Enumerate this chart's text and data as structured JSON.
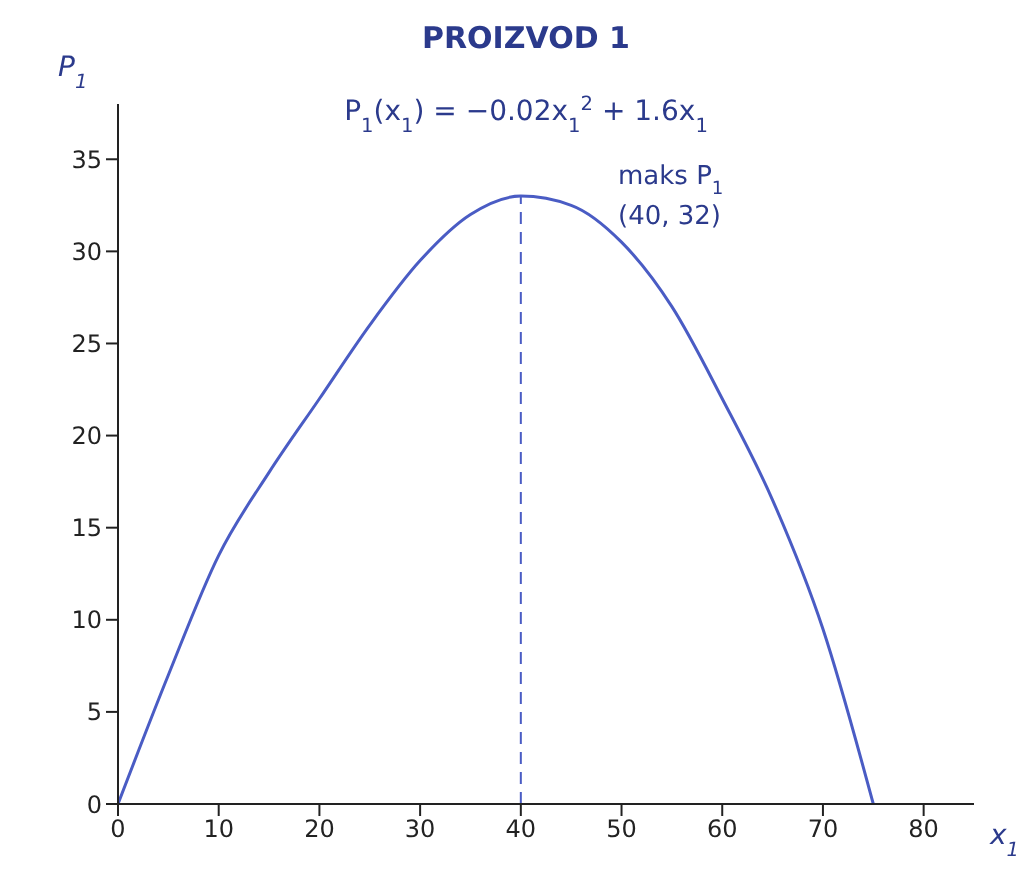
{
  "chart_data": {
    "type": "line",
    "title": "PROIZVOD 1",
    "subtitle": "P$_{1}$(x$_{1}$) = −0.02x$_{1}$$^{2}$ + 1.6x$_{1}$",
    "xlabel": "x$_{1}$",
    "ylabel": "P$_{1}$",
    "x": [
      0,
      5,
      10,
      15,
      20,
      25,
      30,
      35,
      40,
      45,
      50,
      55,
      60,
      65,
      70,
      75
    ],
    "series": [
      {
        "color": "#4a5cc4",
        "values": [
          0,
          7,
          13.5,
          18,
          22,
          26,
          29.5,
          32,
          33,
          32.5,
          30.5,
          27,
          22,
          16.5,
          9.5,
          0
        ]
      }
    ],
    "xlim": [
      0,
      85
    ],
    "xticks": [
      0,
      10,
      20,
      30,
      40,
      50,
      60,
      70,
      80
    ],
    "ylim": [
      0,
      38
    ],
    "yticks": [
      0,
      5,
      10,
      15,
      20,
      25,
      30,
      35
    ],
    "ref_lines": [
      {
        "axis": "x",
        "value": 40,
        "color": "#4a5cc4",
        "line_style": "dashed"
      }
    ],
    "annotations": [
      "maks P$_{1}$",
      "(40, 32)"
    ],
    "grid": false,
    "legend": false,
    "marker": "none",
    "line_style": "solid"
  }
}
